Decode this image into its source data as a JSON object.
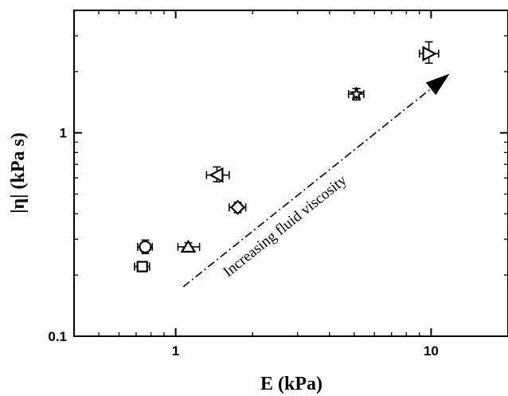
{
  "chart_data": {
    "type": "scatter",
    "title": "",
    "xlabel": "E (kPa)",
    "ylabel": "|η| (kPa s)",
    "xscale": "log",
    "yscale": "log",
    "xlim": [
      0.4,
      20
    ],
    "ylim": [
      0.1,
      4
    ],
    "x_ticks": [
      {
        "value": 1,
        "label": "1"
      },
      {
        "value": 10,
        "label": "10"
      }
    ],
    "y_ticks": [
      {
        "value": 0.1,
        "label": "0.1"
      },
      {
        "value": 1,
        "label": "1"
      }
    ],
    "grid": false,
    "series": [
      {
        "marker": "square",
        "points": [
          {
            "x": 0.74,
            "y": 0.22,
            "x_err": [
              0.69,
              0.79
            ],
            "y_err": [
              0.208,
              0.232
            ]
          }
        ]
      },
      {
        "marker": "circle",
        "points": [
          {
            "x": 0.76,
            "y": 0.275,
            "x_err": [
              0.71,
              0.81
            ],
            "y_err": [
              0.255,
              0.297
            ]
          }
        ]
      },
      {
        "marker": "triangle-up",
        "points": [
          {
            "x": 1.12,
            "y": 0.275,
            "x_err": [
              1.02,
              1.24
            ],
            "y_err": [
              0.262,
              0.288
            ]
          }
        ]
      },
      {
        "marker": "triangle-left",
        "points": [
          {
            "x": 1.45,
            "y": 0.62,
            "x_err": [
              1.32,
              1.62
            ],
            "y_err": [
              0.575,
              0.68
            ]
          }
        ]
      },
      {
        "marker": "diamond",
        "points": [
          {
            "x": 1.75,
            "y": 0.43,
            "x_err": [
              1.62,
              1.88
            ],
            "y_err": [
              0.405,
              0.455
            ]
          }
        ]
      },
      {
        "marker": "star",
        "points": [
          {
            "x": 5.1,
            "y": 1.55,
            "x_err": [
              4.75,
              5.45
            ],
            "y_err": [
              1.45,
              1.65
            ]
          }
        ]
      },
      {
        "marker": "triangle-right",
        "points": [
          {
            "x": 9.8,
            "y": 2.45,
            "x_err": [
              9.0,
              10.7
            ],
            "y_err": [
              2.2,
              2.8
            ]
          }
        ]
      }
    ],
    "annotations": [
      {
        "text": "Increasing fluid viscosity",
        "type": "arrow",
        "from": {
          "x": 1.07,
          "y": 0.175
        },
        "to": {
          "x": 11.8,
          "y": 1.95
        }
      }
    ]
  }
}
